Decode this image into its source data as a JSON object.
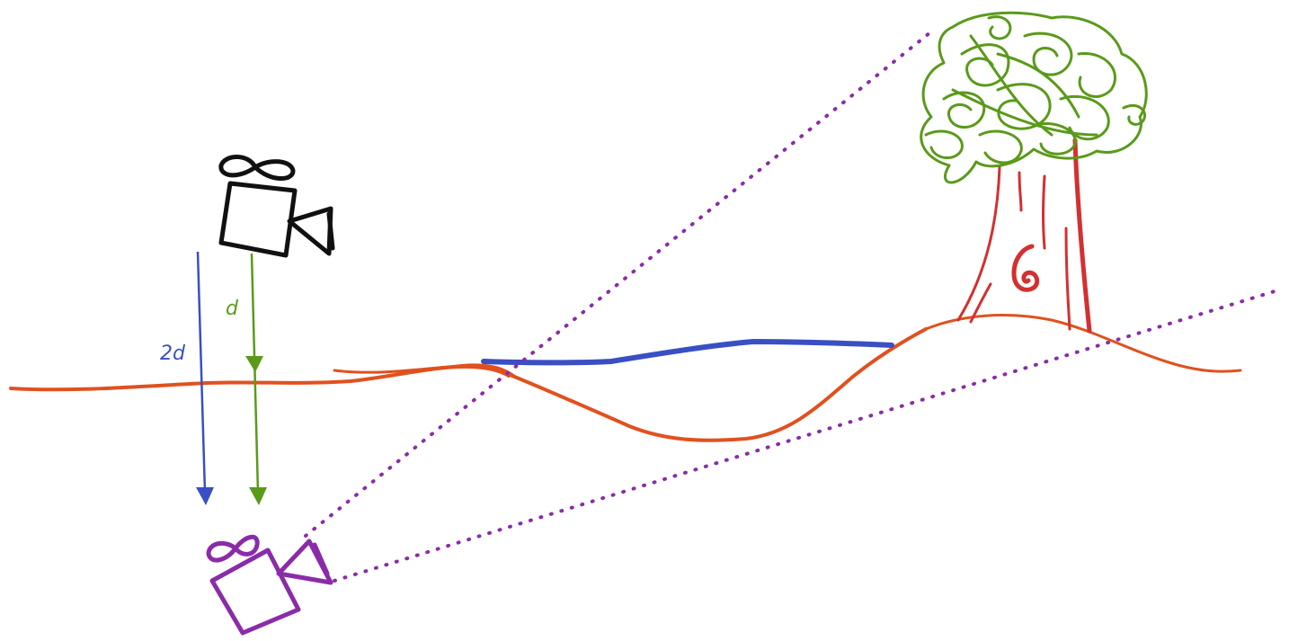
{
  "labels": {
    "original_height": "d",
    "mirrored_height": "2d"
  },
  "colors": {
    "background": "#ffffff",
    "ground": "#e0511f",
    "water": "#3a4fc4",
    "distance_d": "#5a9a1a",
    "distance_2d": "#3a4fc4",
    "original_camera": "#111111",
    "mirrored_camera": "#8a2ca8",
    "sight_lines": "#8a2ca8",
    "tree_canopy": "#5a9a1a",
    "tree_trunk": "#d43030"
  },
  "icons": {
    "original_camera": "video-camera-icon",
    "mirrored_camera": "video-camera-icon",
    "tree": "tree-icon"
  }
}
